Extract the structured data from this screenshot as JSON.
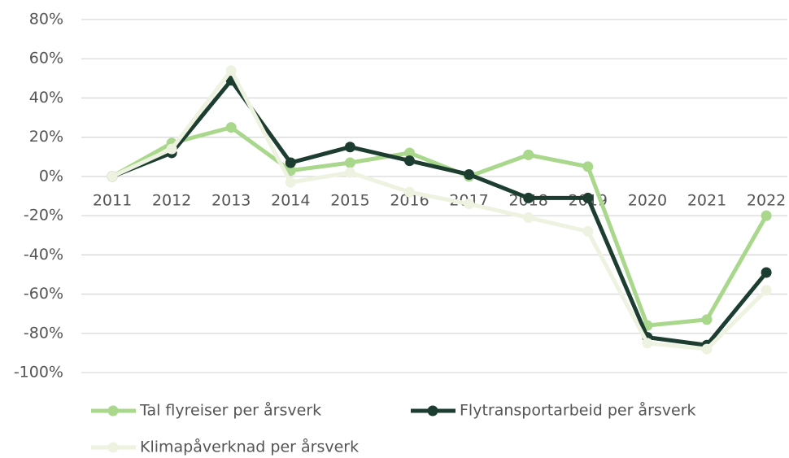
{
  "chart_data": {
    "type": "line",
    "categories": [
      "2011",
      "2012",
      "2013",
      "2014",
      "2015",
      "2016",
      "2017",
      "2018",
      "2019",
      "2020",
      "2021",
      "2022"
    ],
    "series": [
      {
        "name": "Tal flyreiser per årsverk",
        "color": "#a9d78c",
        "values": [
          0,
          17,
          25,
          3,
          7,
          12,
          0,
          11,
          5,
          -76,
          -73,
          -20
        ]
      },
      {
        "name": "Flytransportarbeid per årsverk",
        "color": "#1c3d30",
        "values": [
          0,
          12,
          49,
          7,
          15,
          8,
          1,
          -11,
          -11,
          -82,
          -86,
          -49
        ]
      },
      {
        "name": "Klimapåverknad per årsverk",
        "color": "#eef2e1",
        "values": [
          0,
          14,
          54,
          -3,
          2,
          -8,
          -14,
          -21,
          -28,
          -85,
          -88,
          -58
        ]
      }
    ],
    "ylim": [
      -100,
      80
    ],
    "yticks": [
      {
        "value": -100,
        "label": "-100%"
      },
      {
        "value": -80,
        "label": "-80%"
      },
      {
        "value": -60,
        "label": "-60%"
      },
      {
        "value": -40,
        "label": "-40%"
      },
      {
        "value": -20,
        "label": "-20%"
      },
      {
        "value": 0,
        "label": "0%"
      },
      {
        "value": 20,
        "label": "20%"
      },
      {
        "value": 40,
        "label": "40%"
      },
      {
        "value": 60,
        "label": "60%"
      },
      {
        "value": 80,
        "label": "80%"
      }
    ],
    "grid": true,
    "legend": "bottom"
  }
}
